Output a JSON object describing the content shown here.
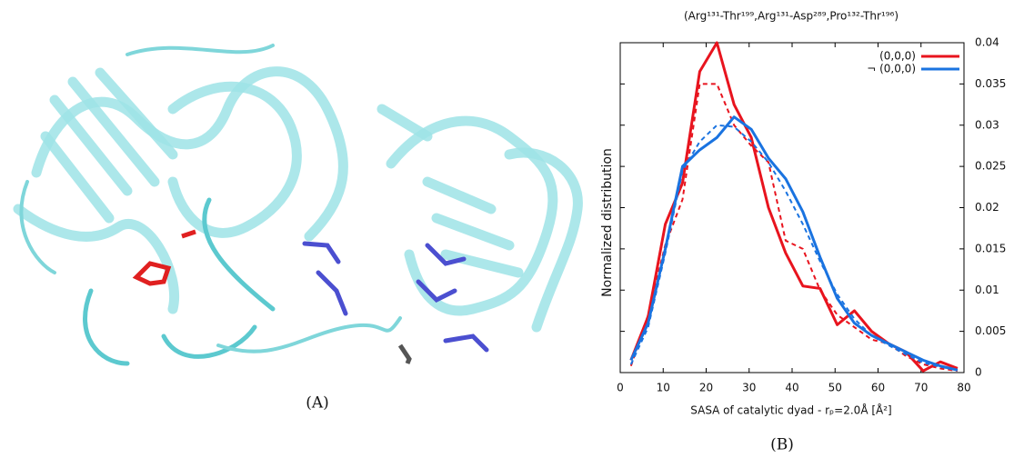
{
  "figure": {
    "panel_a_caption": "(A)",
    "panel_b_caption": "(B)"
  },
  "chart_data": {
    "type": "line",
    "title": "(Arg¹³¹-Thr¹⁹⁹,Arg¹³¹-Asp²⁸⁹,Pro¹³²-Thr¹⁹⁶)",
    "x_label": "SASA of catalytic dyad - rₚ=2.0Å   [Å²]",
    "y_label": "Normalized  distribution",
    "x": [
      2.5,
      6.5,
      10.5,
      14.5,
      18.5,
      22.5,
      26.5,
      30.5,
      34.5,
      38.5,
      42.5,
      46.5,
      50.5,
      54.5,
      58.5,
      62.5,
      66.5,
      70.5,
      74.5,
      78.5
    ],
    "series": [
      {
        "name": "(0,0,0)",
        "color": "#e8141e",
        "dash": false,
        "values": [
          0.0015,
          0.0068,
          0.018,
          0.023,
          0.0365,
          0.04,
          0.0325,
          0.0285,
          0.02,
          0.0145,
          0.0105,
          0.0102,
          0.0058,
          0.0075,
          0.005,
          0.0035,
          0.0025,
          0.0002,
          0.0013,
          0.0005
        ]
      },
      {
        "color": "#e8141e",
        "dash": true,
        "values": [
          0.0008,
          0.007,
          0.0155,
          0.021,
          0.035,
          0.035,
          0.03,
          0.0275,
          0.0255,
          0.016,
          0.015,
          0.01,
          0.007,
          0.0055,
          0.004,
          0.0035,
          0.002,
          0.001,
          0.0005,
          0.0002
        ]
      },
      {
        "name": "¬ (0,0,0)",
        "color": "#1a73e0",
        "dash": false,
        "values": [
          0.0015,
          0.006,
          0.015,
          0.025,
          0.027,
          0.0285,
          0.031,
          0.0295,
          0.026,
          0.0235,
          0.0195,
          0.014,
          0.009,
          0.006,
          0.0045,
          0.0035,
          0.0025,
          0.0015,
          0.0008,
          0.0003
        ]
      },
      {
        "color": "#1a73e0",
        "dash": true,
        "values": [
          0.001,
          0.0055,
          0.0145,
          0.0245,
          0.028,
          0.03,
          0.0298,
          0.028,
          0.0255,
          0.022,
          0.018,
          0.0135,
          0.0095,
          0.0065,
          0.0045,
          0.0033,
          0.0022,
          0.0012,
          0.0007,
          0.0003
        ]
      }
    ],
    "xlim": [
      0,
      80
    ],
    "xticks": [
      0,
      10,
      20,
      30,
      40,
      50,
      60,
      70,
      80
    ],
    "ylim": [
      0,
      0.04
    ],
    "yticks": [
      0,
      0.005,
      0.01,
      0.015,
      0.02,
      0.025,
      0.03,
      0.035,
      0.04
    ],
    "y_axis_side": "right",
    "legend": "upper right",
    "grid": false
  }
}
